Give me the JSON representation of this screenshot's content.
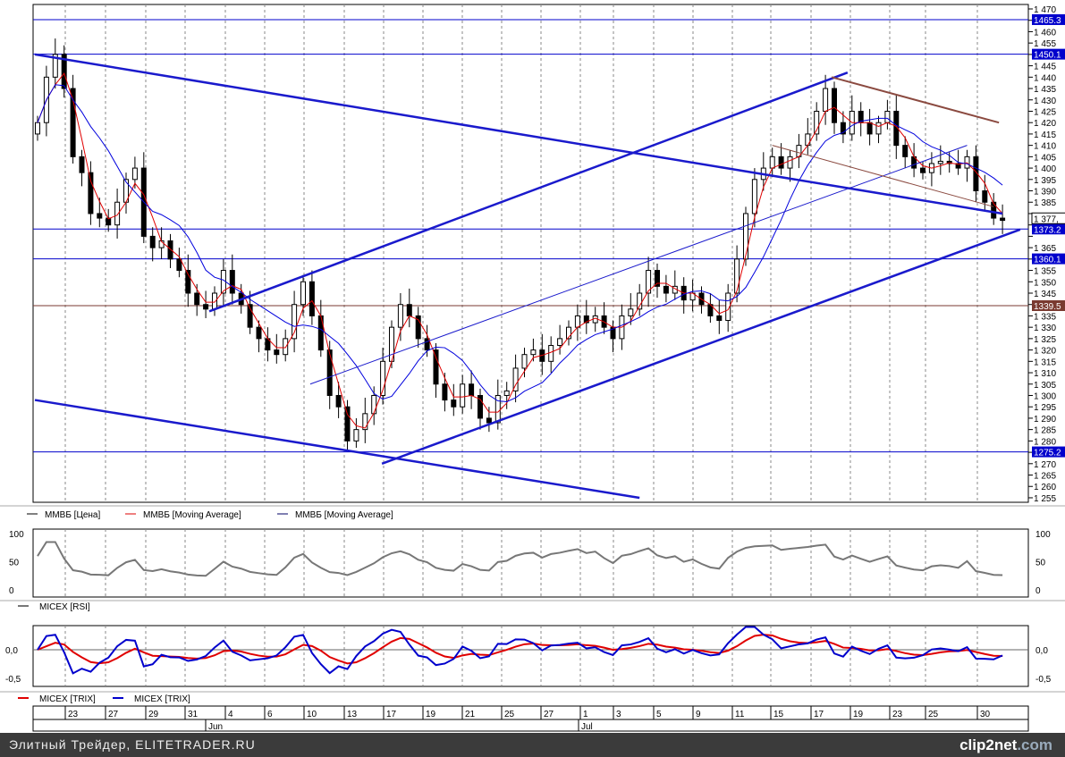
{
  "chart_data": {
    "type": "candlestick",
    "price_axis": {
      "min": 1255,
      "max": 1470,
      "step": 5
    },
    "closes": [
      1420,
      1440,
      1450,
      1435,
      1405,
      1398,
      1380,
      1378,
      1375,
      1385,
      1395,
      1400,
      1370,
      1365,
      1368,
      1360,
      1355,
      1345,
      1340,
      1338,
      1345,
      1355,
      1345,
      1340,
      1330,
      1325,
      1320,
      1318,
      1325,
      1340,
      1350,
      1335,
      1320,
      1300,
      1295,
      1280,
      1285,
      1292,
      1300,
      1315,
      1330,
      1340,
      1335,
      1325,
      1320,
      1305,
      1298,
      1295,
      1305,
      1300,
      1290,
      1288,
      1300,
      1302,
      1312,
      1318,
      1320,
      1315,
      1322,
      1325,
      1330,
      1335,
      1332,
      1335,
      1330,
      1325,
      1335,
      1338,
      1345,
      1355,
      1348,
      1345,
      1348,
      1342,
      1345,
      1340,
      1335,
      1333,
      1345,
      1360,
      1380,
      1395,
      1400,
      1405,
      1400,
      1405,
      1410,
      1415,
      1425,
      1435,
      1420,
      1415,
      1425,
      1420,
      1415,
      1420,
      1425,
      1410,
      1405,
      1400,
      1398,
      1402,
      1403,
      1402,
      1400,
      1405,
      1390,
      1385,
      1378,
      1377
    ],
    "horizontal_levels": [
      {
        "value": 1465.3,
        "label": "1465.3",
        "color": "#0000cc"
      },
      {
        "value": 1450.1,
        "label": "1450.1",
        "color": "#0000cc"
      },
      {
        "value": 1373.2,
        "label": "1373.2",
        "color": "#0000cc"
      },
      {
        "value": 1360.1,
        "label": "1360.1",
        "color": "#0000cc"
      },
      {
        "value": 1339.5,
        "label": "1339.5",
        "color": "#7a3a30"
      },
      {
        "value": 1275.2,
        "label": "1275.2",
        "color": "#0000cc"
      }
    ],
    "last_price": {
      "value": 1377,
      "label": "1 377,"
    },
    "trend_lines": [
      {
        "from": [
          -0.3,
          1450
        ],
        "to": [
          109,
          1380
        ],
        "color": "#1a1acc",
        "w": 2.5
      },
      {
        "from": [
          -0.3,
          1298
        ],
        "to": [
          68,
          1255
        ],
        "color": "#1a1acc",
        "w": 2.5
      },
      {
        "from": [
          19.4,
          1337
        ],
        "to": [
          91.5,
          1442
        ],
        "color": "#1a1acc",
        "w": 2.5
      },
      {
        "from": [
          38.9,
          1270
        ],
        "to": [
          111,
          1373
        ],
        "color": "#1a1acc",
        "w": 2.5
      },
      {
        "from": [
          30.8,
          1305
        ],
        "to": [
          105,
          1410
        ],
        "color": "#1a1acc",
        "w": 1
      },
      {
        "from": [
          89.7,
          1440
        ],
        "to": [
          108.6,
          1420
        ],
        "color": "#8b4a40",
        "w": 2
      },
      {
        "from": [
          83,
          1410
        ],
        "to": [
          108,
          1383
        ],
        "color": "#8b4a40",
        "w": 1
      }
    ],
    "legend_main": [
      "ММВБ [Цена]",
      "ММВБ [Moving Average]",
      "ММВБ [Moving Average]"
    ],
    "rsi": {
      "ticks": [
        "100",
        "50",
        "0"
      ],
      "legend": "MICEX [RSI]"
    },
    "trix": {
      "ticks": [
        "0,0",
        "-0,5"
      ],
      "legend": [
        "MICEX [TRIX]",
        "MICEX [TRIX]"
      ]
    },
    "dates": [
      "23",
      "27",
      "29",
      "31",
      "4",
      "6",
      "10",
      "13",
      "17",
      "19",
      "21",
      "25",
      "27",
      "1",
      "3",
      "5",
      "9",
      "11",
      "15",
      "17",
      "19",
      "23",
      "25",
      "30"
    ],
    "months": [
      "Jun",
      "Jul"
    ]
  },
  "footer": {
    "text": "Элитный Трейдер, ELITETRADER.RU",
    "brand_a": "clip2",
    "brand_b": "net",
    "brand_c": ".com"
  }
}
